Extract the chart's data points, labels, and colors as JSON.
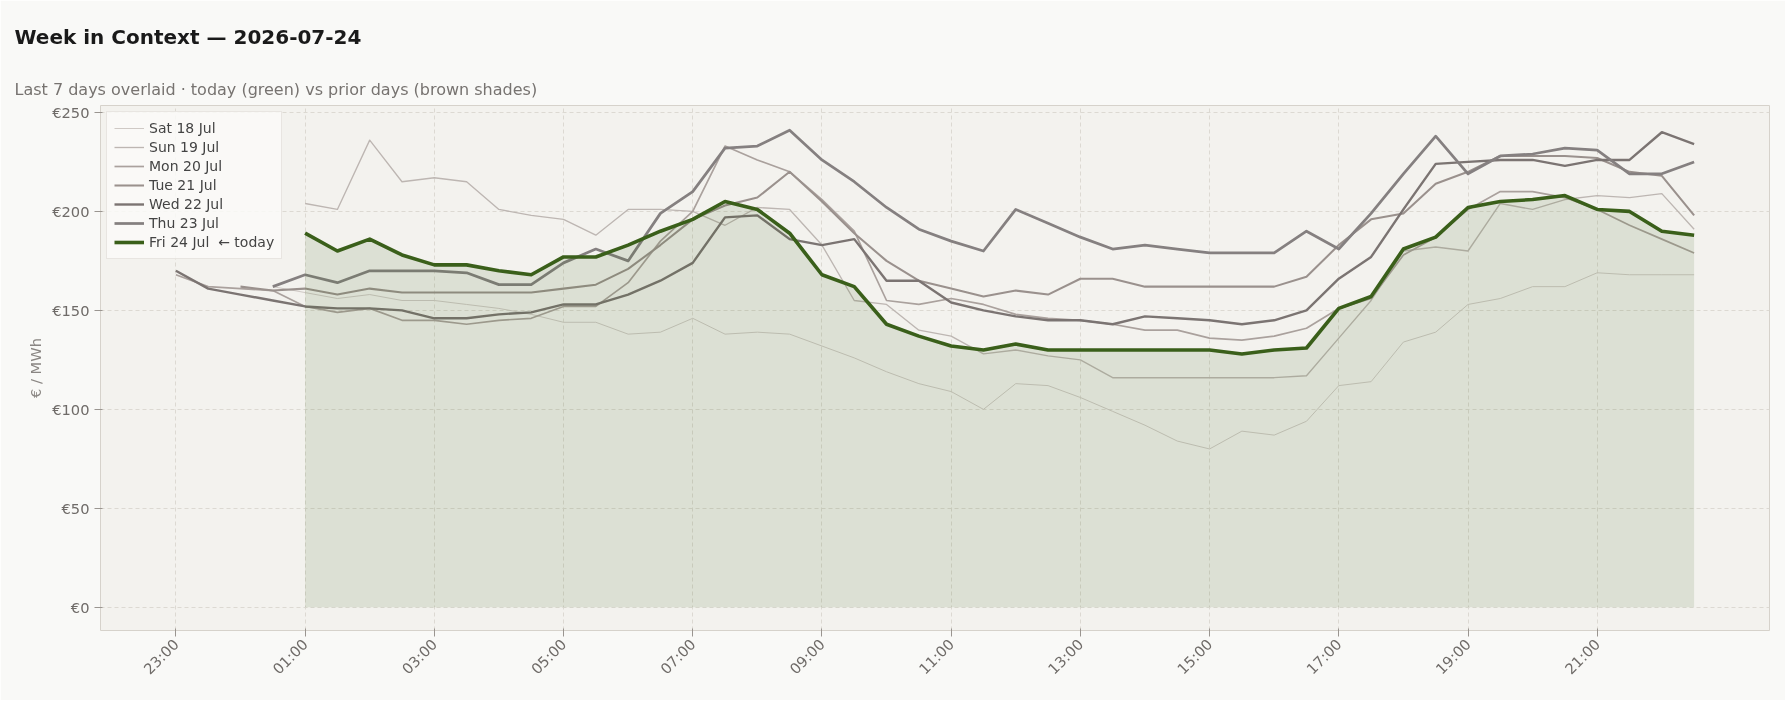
{
  "chart_data": {
    "type": "line",
    "title": "Week in Context — 2026-07-24",
    "subtitle": "Last 7 days overlaid  ·  today (green) vs prior days (brown shades)",
    "ylabel": "€ / MWh",
    "x": [
      "2026-07-23T23:00",
      "2026-07-23T23:30",
      "2026-07-24T00:00",
      "2026-07-24T00:30",
      "2026-07-24T01:00",
      "2026-07-24T01:30",
      "2026-07-24T02:00",
      "2026-07-24T02:30",
      "2026-07-24T03:00",
      "2026-07-24T03:30",
      "2026-07-24T04:00",
      "2026-07-24T04:30",
      "2026-07-24T05:00",
      "2026-07-24T05:30",
      "2026-07-24T06:00",
      "2026-07-24T06:30",
      "2026-07-24T07:00",
      "2026-07-24T07:30",
      "2026-07-24T08:00",
      "2026-07-24T08:30",
      "2026-07-24T09:00",
      "2026-07-24T09:30",
      "2026-07-24T10:00",
      "2026-07-24T10:30",
      "2026-07-24T11:00",
      "2026-07-24T11:30",
      "2026-07-24T12:00",
      "2026-07-24T12:30",
      "2026-07-24T13:00",
      "2026-07-24T13:30",
      "2026-07-24T14:00",
      "2026-07-24T14:30",
      "2026-07-24T15:00",
      "2026-07-24T15:30",
      "2026-07-24T16:00",
      "2026-07-24T16:30",
      "2026-07-24T17:00",
      "2026-07-24T17:30",
      "2026-07-24T18:00",
      "2026-07-24T18:30",
      "2026-07-24T19:00",
      "2026-07-24T19:30",
      "2026-07-24T20:00",
      "2026-07-24T20:30",
      "2026-07-24T21:00",
      "2026-07-24T21:30",
      "2026-07-24T22:00",
      "2026-07-24T22:30"
    ],
    "xlim": [
      "2026-07-23T21:50",
      "2026-07-24T23:40"
    ],
    "xticks": [
      {
        "value": "2026-07-23T23:00",
        "label": "23:00"
      },
      {
        "value": "2026-07-24T01:00",
        "label": "01:00"
      },
      {
        "value": "2026-07-24T03:00",
        "label": "03:00"
      },
      {
        "value": "2026-07-24T05:00",
        "label": "05:00"
      },
      {
        "value": "2026-07-24T07:00",
        "label": "07:00"
      },
      {
        "value": "2026-07-24T09:00",
        "label": "09:00"
      },
      {
        "value": "2026-07-24T11:00",
        "label": "11:00"
      },
      {
        "value": "2026-07-24T13:00",
        "label": "13:00"
      },
      {
        "value": "2026-07-24T15:00",
        "label": "15:00"
      },
      {
        "value": "2026-07-24T17:00",
        "label": "17:00"
      },
      {
        "value": "2026-07-24T19:00",
        "label": "19:00"
      },
      {
        "value": "2026-07-24T21:00",
        "label": "21:00"
      }
    ],
    "ylim": [
      -11.7,
      253.5
    ],
    "yticks": [
      {
        "value": 0,
        "label": "€0"
      },
      {
        "value": 50,
        "label": "€50"
      },
      {
        "value": 100,
        "label": "€100"
      },
      {
        "value": 150,
        "label": "€150"
      },
      {
        "value": 200,
        "label": "€200"
      },
      {
        "value": 250,
        "label": "€250"
      }
    ],
    "grid": true,
    "legend": "top left",
    "line_style": "solid",
    "series": [
      {
        "name": "Sat 18 Jul",
        "color": "#cfc9c5",
        "values": [
          null,
          null,
          null,
          162,
          159,
          156,
          158,
          155,
          155,
          153,
          151,
          148,
          144,
          144,
          138,
          139,
          146,
          138,
          139,
          138,
          132,
          126,
          119,
          113,
          109,
          100,
          113,
          112,
          106,
          99,
          92,
          84,
          80,
          89,
          87,
          94,
          112,
          114,
          134,
          139,
          153,
          156,
          162,
          162,
          169,
          168,
          168,
          168
        ]
      },
      {
        "name": "Sun 19 Jul",
        "color": "#bdb6b2",
        "values": [
          null,
          null,
          null,
          null,
          204,
          201,
          236,
          215,
          217,
          215,
          201,
          198,
          196,
          188,
          201,
          201,
          200,
          193,
          202,
          201,
          183,
          155,
          153,
          140,
          137,
          128,
          130,
          127,
          125,
          116,
          116,
          116,
          116,
          116,
          116,
          117,
          136,
          155,
          180,
          182,
          180,
          204,
          201,
          206,
          208,
          207,
          209,
          191
        ]
      },
      {
        "name": "Mon 20 Jul",
        "color": "#aaa19d",
        "values": [
          168,
          162,
          161,
          160,
          152,
          149,
          151,
          145,
          145,
          143,
          145,
          146,
          152,
          152,
          164,
          185,
          200,
          233,
          226,
          220,
          206,
          190,
          155,
          153,
          156,
          153,
          148,
          146,
          145,
          143,
          140,
          140,
          136,
          135,
          137,
          141,
          151,
          156,
          178,
          187,
          201,
          210,
          210,
          207,
          201,
          193,
          186,
          179
        ]
      },
      {
        "name": "Tue 21 Jul",
        "color": "#9a918d",
        "values": [
          null,
          null,
          162,
          160,
          161,
          158,
          161,
          159,
          159,
          159,
          159,
          159,
          161,
          163,
          171,
          183,
          196,
          203,
          207,
          220,
          205,
          189,
          175,
          165,
          161,
          157,
          160,
          158,
          166,
          166,
          162,
          162,
          162,
          162,
          162,
          167,
          183,
          196,
          199,
          214,
          220,
          228,
          228,
          228,
          227,
          220,
          218,
          198
        ]
      },
      {
        "name": "Wed 22 Jul",
        "color": "#7b7472",
        "values": [
          170,
          161,
          158,
          155,
          152,
          151,
          151,
          150,
          146,
          146,
          148,
          149,
          153,
          153,
          158,
          165,
          174,
          197,
          198,
          186,
          183,
          186,
          165,
          165,
          154,
          150,
          147,
          145,
          145,
          143,
          147,
          146,
          145,
          143,
          145,
          150,
          166,
          177,
          201,
          224,
          225,
          226,
          226,
          223,
          226,
          226,
          240,
          234
        ]
      },
      {
        "name": "Thu 23 Jul",
        "color": "#858080",
        "values": [
          null,
          null,
          null,
          162,
          168,
          164,
          170,
          170,
          170,
          169,
          163,
          163,
          174,
          181,
          175,
          199,
          210,
          232,
          233,
          241,
          226,
          215,
          202,
          191,
          185,
          180,
          201,
          194,
          187,
          181,
          183,
          181,
          179,
          179,
          179,
          190,
          181,
          199,
          219,
          238,
          219,
          228,
          229,
          232,
          231,
          219,
          219,
          225
        ]
      },
      {
        "name": "Fri 24 Jul  ← today",
        "type": "area",
        "color": "#3a5f1a",
        "values": [
          null,
          null,
          null,
          null,
          189,
          180,
          186,
          178,
          173,
          173,
          170,
          168,
          177,
          177,
          183,
          190,
          196,
          205,
          201,
          189,
          168,
          162,
          143,
          137,
          132,
          130,
          133,
          130,
          130,
          130,
          130,
          130,
          130,
          128,
          130,
          131,
          151,
          157,
          181,
          187,
          202,
          205,
          206,
          208,
          201,
          200,
          190,
          188
        ]
      }
    ]
  }
}
